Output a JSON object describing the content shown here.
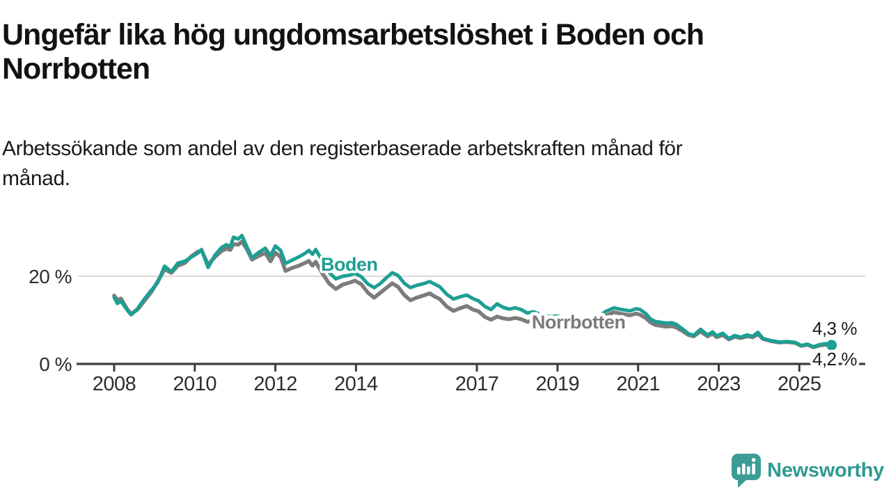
{
  "header": {
    "title_lines": [
      "Ungefär lika hög ungdomsarbetslöshet i Boden och",
      "Norrbotten"
    ],
    "subtitle_lines": [
      "Arbetssökande som andel av den registerbaserade arbetskraften månad för",
      "månad."
    ]
  },
  "branding": {
    "logo_text": "Newsworthy",
    "logo_color": "#2f9a92"
  },
  "chart_data": {
    "type": "line",
    "title": "Ungefär lika hög ungdomsarbetslöshet i Boden och Norrbotten",
    "subtitle": "Arbetssökande som andel av den registerbaserade arbetskraften månad för månad.",
    "unit": "%",
    "xlabel": "",
    "ylabel": "",
    "xlim": [
      2007.7,
      2026.3
    ],
    "ylim": [
      0,
      32
    ],
    "grid": "horizontal line at 20 % only",
    "legend_position": "inline labels on lines",
    "x_ticks": [
      2008,
      2010,
      2012,
      2014,
      2017,
      2019,
      2021,
      2023,
      2025
    ],
    "y_ticks": [
      {
        "value": 0,
        "label": "0 %"
      },
      {
        "value": 20,
        "label": "20 %"
      }
    ],
    "colors": {
      "boden": "#1d9f93",
      "norrbotten": "#7c7c7c",
      "axis": "#3c3c3c",
      "grid": "#d9d9d9"
    },
    "end_labels": [
      {
        "series": "Boden",
        "text": "4,3 %"
      },
      {
        "series": "Norrbotten",
        "text": "4,2 %"
      }
    ],
    "series": [
      {
        "name": "Boden",
        "color": "#1d9f93",
        "points": [
          [
            2008.0,
            15.2
          ],
          [
            2008.08,
            13.8
          ],
          [
            2008.17,
            14.3
          ],
          [
            2008.33,
            12.2
          ],
          [
            2008.42,
            11.2
          ],
          [
            2008.58,
            12.6
          ],
          [
            2008.75,
            14.8
          ],
          [
            2008.92,
            16.8
          ],
          [
            2009.08,
            18.5
          ],
          [
            2009.25,
            22.3
          ],
          [
            2009.42,
            21.0
          ],
          [
            2009.58,
            23.0
          ],
          [
            2009.75,
            23.4
          ],
          [
            2009.92,
            24.4
          ],
          [
            2010.08,
            25.3
          ],
          [
            2010.17,
            26.1
          ],
          [
            2010.33,
            22.0
          ],
          [
            2010.5,
            24.8
          ],
          [
            2010.67,
            26.6
          ],
          [
            2010.79,
            27.2
          ],
          [
            2010.88,
            26.7
          ],
          [
            2010.96,
            28.9
          ],
          [
            2011.08,
            28.5
          ],
          [
            2011.17,
            29.3
          ],
          [
            2011.29,
            26.8
          ],
          [
            2011.42,
            24.2
          ],
          [
            2011.58,
            25.4
          ],
          [
            2011.75,
            26.4
          ],
          [
            2011.88,
            24.7
          ],
          [
            2012.0,
            26.9
          ],
          [
            2012.13,
            25.9
          ],
          [
            2012.25,
            22.9
          ],
          [
            2012.42,
            23.7
          ],
          [
            2012.58,
            24.4
          ],
          [
            2012.75,
            25.3
          ],
          [
            2012.83,
            25.9
          ],
          [
            2012.92,
            25.0
          ],
          [
            2013.0,
            26.1
          ],
          [
            2013.17,
            23.5
          ],
          [
            2013.33,
            20.9
          ],
          [
            2013.5,
            19.4
          ],
          [
            2013.67,
            20.0
          ],
          [
            2013.83,
            20.2
          ],
          [
            2013.97,
            20.7
          ],
          [
            2014.13,
            19.9
          ],
          [
            2014.3,
            18.2
          ],
          [
            2014.45,
            17.4
          ],
          [
            2014.6,
            18.3
          ],
          [
            2014.75,
            19.6
          ],
          [
            2014.9,
            20.8
          ],
          [
            2015.04,
            20.2
          ],
          [
            2015.2,
            18.4
          ],
          [
            2015.35,
            17.4
          ],
          [
            2015.5,
            17.9
          ],
          [
            2015.67,
            18.3
          ],
          [
            2015.83,
            18.8
          ],
          [
            2015.95,
            18.2
          ],
          [
            2016.08,
            17.6
          ],
          [
            2016.25,
            15.9
          ],
          [
            2016.42,
            14.8
          ],
          [
            2016.58,
            15.3
          ],
          [
            2016.75,
            15.7
          ],
          [
            2016.9,
            14.9
          ],
          [
            2017.04,
            14.4
          ],
          [
            2017.2,
            13.1
          ],
          [
            2017.35,
            12.4
          ],
          [
            2017.5,
            13.7
          ],
          [
            2017.65,
            12.9
          ],
          [
            2017.8,
            12.5
          ],
          [
            2017.95,
            12.8
          ],
          [
            2018.1,
            12.4
          ],
          [
            2018.25,
            11.6
          ],
          [
            2018.4,
            11.9
          ],
          [
            2018.6,
            11.2
          ],
          [
            2018.8,
            10.8
          ],
          [
            2019.0,
            10.9
          ],
          [
            2019.2,
            10.3
          ],
          [
            2019.4,
            9.8
          ],
          [
            2019.6,
            10.1
          ],
          [
            2019.8,
            10.4
          ],
          [
            2020.0,
            10.6
          ],
          [
            2020.2,
            12.0
          ],
          [
            2020.4,
            12.8
          ],
          [
            2020.6,
            12.4
          ],
          [
            2020.8,
            12.1
          ],
          [
            2020.95,
            12.6
          ],
          [
            2021.05,
            12.4
          ],
          [
            2021.2,
            11.4
          ],
          [
            2021.3,
            10.3
          ],
          [
            2021.42,
            9.7
          ],
          [
            2021.55,
            9.5
          ],
          [
            2021.7,
            9.3
          ],
          [
            2021.85,
            9.4
          ],
          [
            2021.95,
            9.0
          ],
          [
            2022.1,
            8.0
          ],
          [
            2022.25,
            6.9
          ],
          [
            2022.38,
            6.5
          ],
          [
            2022.55,
            7.9
          ],
          [
            2022.72,
            6.6
          ],
          [
            2022.85,
            7.3
          ],
          [
            2022.95,
            6.4
          ],
          [
            2023.1,
            7.0
          ],
          [
            2023.25,
            5.8
          ],
          [
            2023.4,
            6.5
          ],
          [
            2023.55,
            6.1
          ],
          [
            2023.7,
            6.6
          ],
          [
            2023.85,
            6.3
          ],
          [
            2023.97,
            7.2
          ],
          [
            2024.1,
            5.8
          ],
          [
            2024.3,
            5.3
          ],
          [
            2024.5,
            5.0
          ],
          [
            2024.7,
            5.1
          ],
          [
            2024.9,
            4.9
          ],
          [
            2025.05,
            4.2
          ],
          [
            2025.2,
            4.5
          ],
          [
            2025.35,
            3.9
          ],
          [
            2025.5,
            4.4
          ],
          [
            2025.65,
            4.6
          ],
          [
            2025.8,
            4.3
          ]
        ]
      },
      {
        "name": "Norrbotten",
        "color": "#7c7c7c",
        "points": [
          [
            2008.0,
            15.6
          ],
          [
            2008.08,
            14.6
          ],
          [
            2008.17,
            14.9
          ],
          [
            2008.33,
            12.4
          ],
          [
            2008.42,
            11.4
          ],
          [
            2008.58,
            12.4
          ],
          [
            2008.75,
            14.4
          ],
          [
            2008.92,
            16.4
          ],
          [
            2009.08,
            18.8
          ],
          [
            2009.25,
            21.6
          ],
          [
            2009.42,
            20.8
          ],
          [
            2009.58,
            22.4
          ],
          [
            2009.75,
            23.0
          ],
          [
            2009.92,
            24.6
          ],
          [
            2010.08,
            25.6
          ],
          [
            2010.17,
            25.9
          ],
          [
            2010.33,
            22.6
          ],
          [
            2010.5,
            24.4
          ],
          [
            2010.67,
            25.8
          ],
          [
            2010.79,
            26.3
          ],
          [
            2010.88,
            26.0
          ],
          [
            2010.96,
            27.3
          ],
          [
            2011.08,
            27.2
          ],
          [
            2011.17,
            27.9
          ],
          [
            2011.29,
            26.2
          ],
          [
            2011.42,
            23.8
          ],
          [
            2011.58,
            24.6
          ],
          [
            2011.75,
            25.3
          ],
          [
            2011.88,
            23.4
          ],
          [
            2012.0,
            25.4
          ],
          [
            2012.13,
            24.4
          ],
          [
            2012.25,
            21.2
          ],
          [
            2012.42,
            21.9
          ],
          [
            2012.58,
            22.4
          ],
          [
            2012.75,
            23.1
          ],
          [
            2012.83,
            23.5
          ],
          [
            2012.92,
            22.4
          ],
          [
            2013.0,
            23.3
          ],
          [
            2013.17,
            20.6
          ],
          [
            2013.33,
            18.4
          ],
          [
            2013.5,
            17.1
          ],
          [
            2013.67,
            18.1
          ],
          [
            2013.83,
            18.5
          ],
          [
            2013.97,
            19.0
          ],
          [
            2014.13,
            18.2
          ],
          [
            2014.3,
            16.2
          ],
          [
            2014.45,
            15.1
          ],
          [
            2014.6,
            16.2
          ],
          [
            2014.75,
            17.3
          ],
          [
            2014.9,
            18.4
          ],
          [
            2015.04,
            17.6
          ],
          [
            2015.2,
            15.7
          ],
          [
            2015.35,
            14.5
          ],
          [
            2015.5,
            15.1
          ],
          [
            2015.67,
            15.6
          ],
          [
            2015.83,
            16.1
          ],
          [
            2015.95,
            15.4
          ],
          [
            2016.08,
            14.8
          ],
          [
            2016.25,
            13.1
          ],
          [
            2016.42,
            12.1
          ],
          [
            2016.58,
            12.7
          ],
          [
            2016.75,
            13.2
          ],
          [
            2016.9,
            12.4
          ],
          [
            2017.04,
            12.0
          ],
          [
            2017.2,
            10.7
          ],
          [
            2017.35,
            10.1
          ],
          [
            2017.5,
            10.8
          ],
          [
            2017.65,
            10.4
          ],
          [
            2017.8,
            10.2
          ],
          [
            2017.95,
            10.5
          ],
          [
            2018.1,
            10.2
          ],
          [
            2018.25,
            9.6
          ],
          [
            2018.4,
            9.9
          ],
          [
            2018.6,
            9.4
          ],
          [
            2018.8,
            9.1
          ],
          [
            2019.0,
            9.2
          ],
          [
            2019.2,
            8.8
          ],
          [
            2019.4,
            8.5
          ],
          [
            2019.6,
            8.8
          ],
          [
            2019.8,
            9.1
          ],
          [
            2020.0,
            9.4
          ],
          [
            2020.2,
            11.0
          ],
          [
            2020.4,
            11.8
          ],
          [
            2020.6,
            11.4
          ],
          [
            2020.8,
            11.1
          ],
          [
            2020.95,
            11.5
          ],
          [
            2021.05,
            11.2
          ],
          [
            2021.2,
            10.4
          ],
          [
            2021.3,
            9.5
          ],
          [
            2021.42,
            8.9
          ],
          [
            2021.55,
            8.7
          ],
          [
            2021.7,
            8.5
          ],
          [
            2021.85,
            8.6
          ],
          [
            2021.95,
            8.3
          ],
          [
            2022.1,
            7.5
          ],
          [
            2022.25,
            6.6
          ],
          [
            2022.38,
            6.3
          ],
          [
            2022.55,
            7.4
          ],
          [
            2022.72,
            6.3
          ],
          [
            2022.85,
            6.9
          ],
          [
            2022.95,
            6.1
          ],
          [
            2023.1,
            6.6
          ],
          [
            2023.25,
            5.6
          ],
          [
            2023.4,
            6.2
          ],
          [
            2023.55,
            5.9
          ],
          [
            2023.7,
            6.3
          ],
          [
            2023.85,
            6.1
          ],
          [
            2023.97,
            6.8
          ],
          [
            2024.1,
            5.7
          ],
          [
            2024.3,
            5.2
          ],
          [
            2024.5,
            4.9
          ],
          [
            2024.7,
            5.0
          ],
          [
            2024.9,
            4.8
          ],
          [
            2025.05,
            4.1
          ],
          [
            2025.2,
            4.4
          ],
          [
            2025.35,
            3.8
          ],
          [
            2025.5,
            4.2
          ],
          [
            2025.65,
            4.4
          ],
          [
            2025.8,
            4.2
          ]
        ]
      }
    ]
  }
}
